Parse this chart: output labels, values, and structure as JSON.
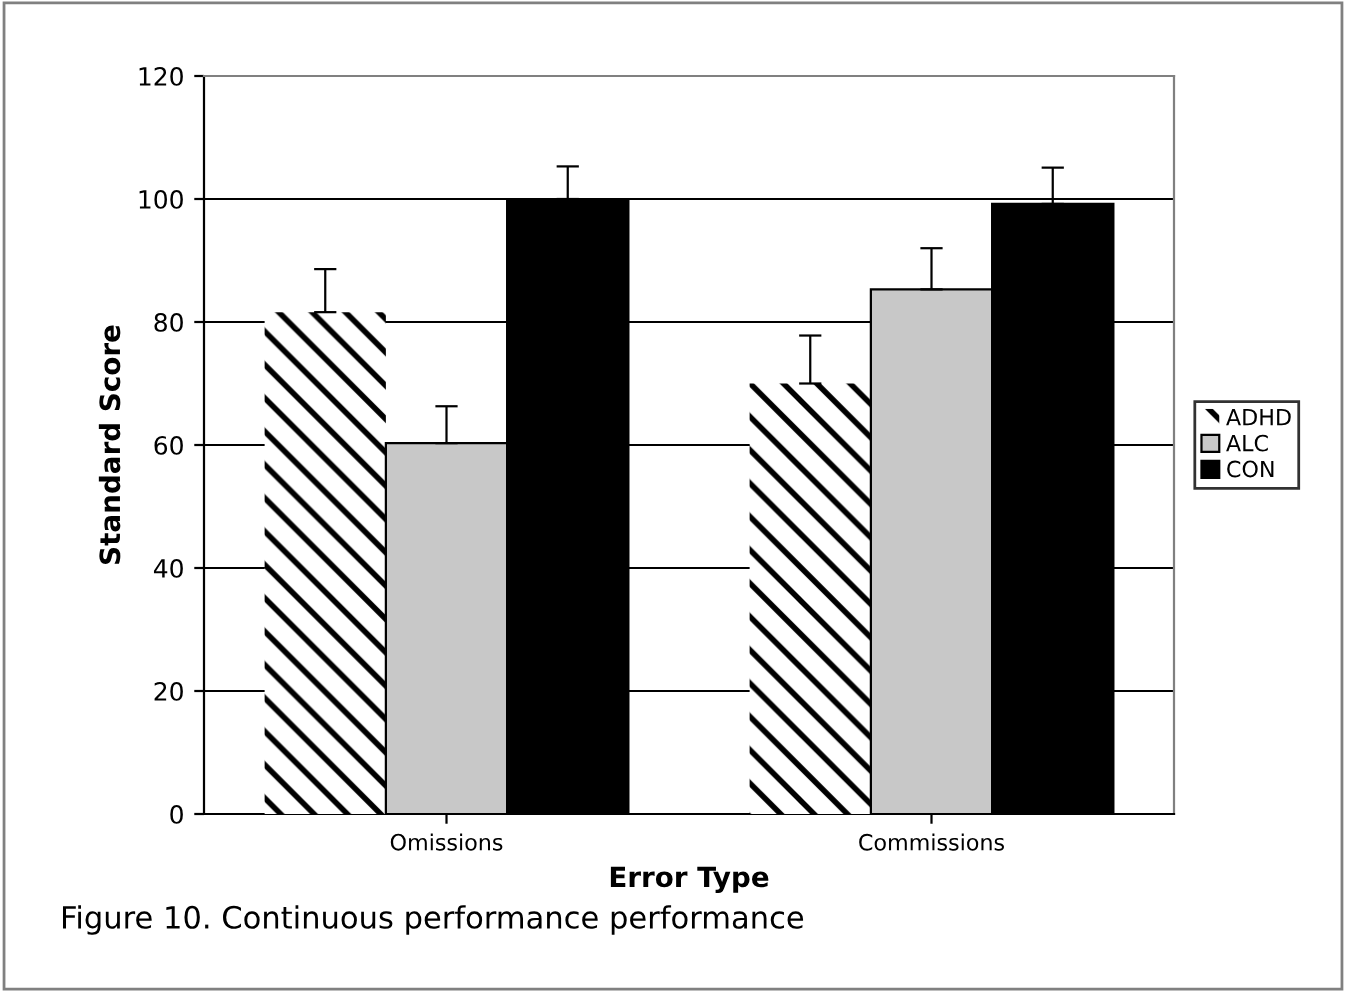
{
  "chart_data": {
    "type": "bar",
    "xlabel": "Error Type",
    "ylabel": "Standard Score",
    "categories": [
      "Omissions",
      "Commissions"
    ],
    "series": [
      {
        "name": "ADHD",
        "color": "#ffffff",
        "values": [
          81.6,
          70
        ],
        "errors": [
          [
            81.6,
            88.6
          ],
          [
            70,
            77.8
          ]
        ]
      },
      {
        "name": "ALC",
        "color": "#c8c8c8",
        "values": [
          60.3,
          85.3
        ],
        "errors": [
          [
            60.3,
            66.3
          ],
          [
            85.3,
            92
          ]
        ]
      },
      {
        "name": "CON",
        "color": "#000000",
        "values": [
          100,
          99.2
        ],
        "errors": [
          [
            100,
            105.3
          ],
          [
            99.2,
            105.1
          ]
        ]
      }
    ],
    "ylim": [
      0,
      120
    ],
    "yticks": [
      0,
      20,
      40,
      60,
      80,
      100,
      120
    ],
    "grid": "y",
    "legend": "right",
    "annotations": [
      "Figure 10. Continuous performance performance"
    ]
  }
}
